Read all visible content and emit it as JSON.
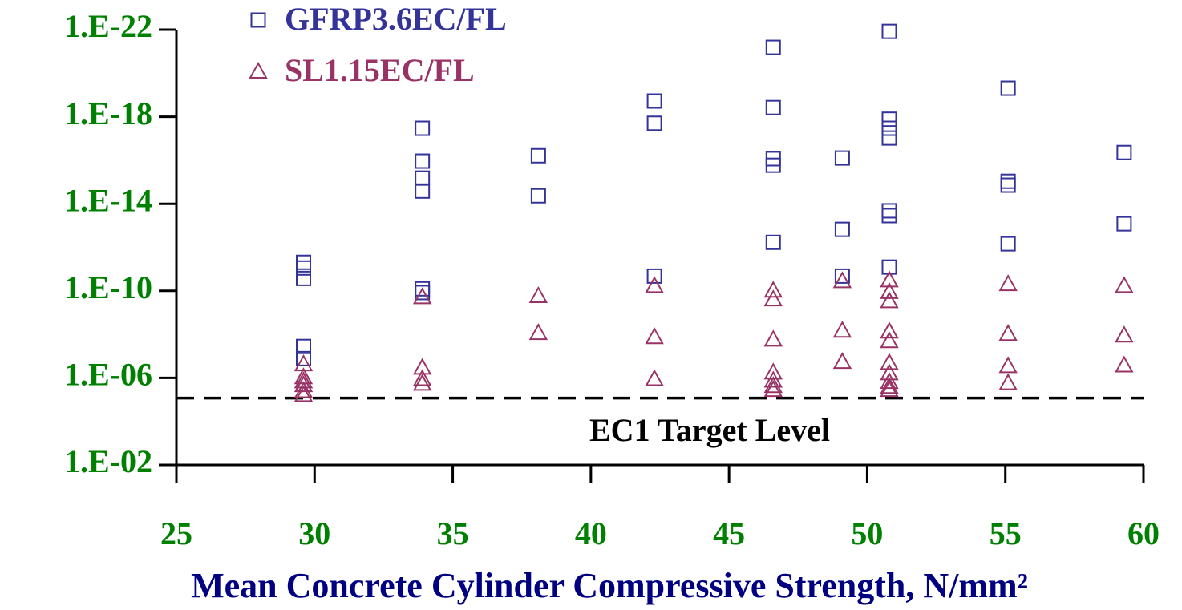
{
  "chart_data": {
    "type": "scatter",
    "x_label": "Mean Concrete Cylinder Compressive Strength, N/mm²",
    "xlim": [
      25,
      60
    ],
    "xticks": [
      25,
      30,
      35,
      40,
      45,
      50,
      55,
      60
    ],
    "ylim": [
      0.01,
      1e-22
    ],
    "log_y": true,
    "yticks": [
      {
        "value": 1e-22,
        "label": "1.E-22"
      },
      {
        "value": 1e-18,
        "label": "1.E-18"
      },
      {
        "value": 1e-14,
        "label": "1.E-14"
      },
      {
        "value": 1e-10,
        "label": "1.E-10"
      },
      {
        "value": 1e-06,
        "label": "1.E-06"
      },
      {
        "value": 0.01,
        "label": "1.E-02"
      }
    ],
    "target_line": {
      "value": 8.5e-06,
      "label": "EC1 Target Level"
    },
    "legend": "top-left",
    "series": [
      {
        "name": "GFRP3.6EC/FL",
        "color": "#333399",
        "marker": "square",
        "x": [
          29.6,
          29.6,
          29.6,
          29.6,
          29.6,
          33.9,
          33.9,
          33.9,
          33.9,
          33.9,
          33.9,
          38.1,
          38.1,
          42.3,
          42.3,
          42.3,
          46.6,
          46.6,
          46.6,
          46.6,
          46.6,
          49.1,
          49.1,
          49.1,
          50.8,
          50.8,
          50.8,
          50.8,
          50.8,
          50.8,
          50.8,
          55.1,
          55.1,
          55.1,
          55.1,
          59.3,
          59.3
        ],
        "values": [
          4.9e-12,
          8.9e-12,
          2.7e-11,
          3.6e-08,
          1.3e-07,
          3.4e-18,
          1.1e-16,
          6.6e-16,
          2.6e-15,
          8.1e-11,
          1.2e-10,
          6.2e-17,
          4.3e-15,
          1.9e-19,
          2e-18,
          2.1e-11,
          6.5e-22,
          3.8e-19,
          8.5e-17,
          1.7e-16,
          5.9e-13,
          7.9e-17,
          1.5e-13,
          2.1e-11,
          1.2e-22,
          1.3e-18,
          3.4e-18,
          9.5e-18,
          2.1e-14,
          3.5e-14,
          8.1e-12,
          4.9e-20,
          9.3e-16,
          1.4e-15,
          6.9e-13,
          4.4e-17,
          8.3e-14
        ]
      },
      {
        "name": "SL1.15EC/FL",
        "color": "#993366",
        "marker": "triangle",
        "x": [
          29.6,
          29.6,
          29.6,
          29.6,
          29.6,
          29.6,
          33.9,
          33.9,
          33.9,
          33.9,
          38.1,
          38.1,
          42.3,
          42.3,
          42.3,
          46.6,
          46.6,
          46.6,
          46.6,
          46.6,
          46.6,
          46.6,
          49.1,
          49.1,
          49.1,
          50.8,
          50.8,
          50.8,
          50.8,
          50.8,
          50.8,
          50.8,
          50.8,
          50.8,
          50.8,
          55.1,
          55.1,
          55.1,
          55.1,
          59.3,
          59.3,
          59.3
        ],
        "values": [
          2.3e-07,
          9.1e-07,
          1.4e-06,
          2.1e-06,
          3.9e-06,
          5.9e-06,
          1.9e-10,
          3.3e-07,
          1.1e-06,
          1.8e-06,
          1.7e-10,
          8.5e-09,
          5.8e-11,
          1.3e-08,
          1.1e-06,
          9.5e-11,
          2.4e-10,
          1.7e-08,
          5.5e-07,
          1.3e-06,
          2.3e-06,
          3.5e-06,
          3.5e-11,
          6.6e-09,
          1.8e-07,
          3.2e-11,
          1.1e-10,
          2.9e-10,
          7.2e-09,
          2e-08,
          2e-07,
          6e-07,
          1.5e-06,
          2.5e-06,
          3.5e-06,
          4.8e-11,
          9.3e-09,
          2.8e-07,
          1.7e-06,
          5.8e-11,
          1.1e-08,
          2.6e-07
        ]
      }
    ]
  }
}
